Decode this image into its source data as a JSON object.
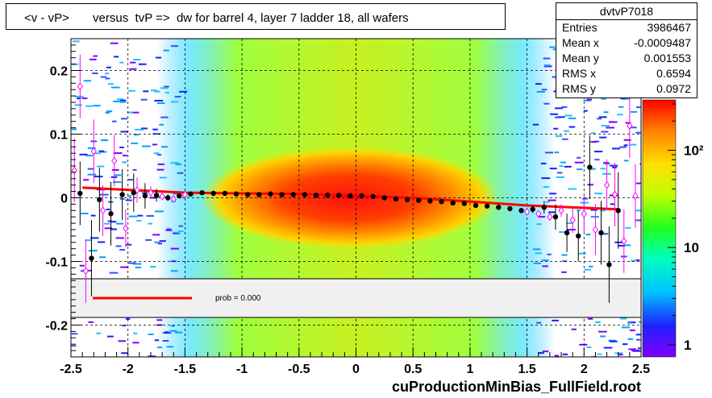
{
  "title": "<v - vP>       versus  tvP =>  dw for barrel 4, layer 7 ladder 18, all wafers",
  "stats": {
    "name": "dvtvP7018",
    "rows": [
      {
        "label": "Entries",
        "value": "3986467"
      },
      {
        "label": "Mean x",
        "value": "-0.0009487"
      },
      {
        "label": "Mean y",
        "value": "0.001553"
      },
      {
        "label": "RMS x",
        "value": "0.6594"
      },
      {
        "label": "RMS y",
        "value": "0.0972"
      }
    ]
  },
  "legend": {
    "prob_text": "prob = 0.000"
  },
  "footer": "cuProductionMinBias_FullField.root",
  "colors": {
    "fit_line": "#ff0000",
    "profile_marker": "#000000",
    "alt_marker": "#ff00ff"
  },
  "chart_data": {
    "type": "heatmap",
    "xlim": [
      -2.5,
      2.5
    ],
    "ylim": [
      -0.25,
      0.25
    ],
    "x_ticks": [
      -2.5,
      -2,
      -1.5,
      -1,
      -0.5,
      0,
      0.5,
      1,
      1.5,
      2,
      2.5
    ],
    "x_tick_labels": [
      "-2.5",
      "-2",
      "-1.5",
      "-1",
      "-0.5",
      "0",
      "0.5",
      "1",
      "1.5",
      "2",
      "2.5"
    ],
    "y_ticks": [
      -0.2,
      -0.1,
      0,
      0.1,
      0.2
    ],
    "y_tick_labels": [
      "-0.2",
      "-0.1",
      "0",
      "0.1",
      "0.2"
    ],
    "z_scale": "log",
    "z_ticks": [
      1,
      10,
      100
    ],
    "z_tick_labels": [
      "1",
      "10",
      "10²"
    ],
    "grid": true,
    "fit_line": {
      "x": [
        -2.4,
        -1.5,
        -0.5,
        0.5,
        1.5,
        2.3
      ],
      "y": [
        0.016,
        0.008,
        0.006,
        0.0,
        -0.012,
        -0.018
      ]
    },
    "profile": {
      "x": [
        -2.42,
        -2.32,
        -2.25,
        -2.15,
        -2.05,
        -1.95,
        -1.85,
        -1.75,
        -1.65,
        -1.55,
        -1.45,
        -1.35,
        -1.25,
        -1.15,
        -1.05,
        -0.95,
        -0.85,
        -0.75,
        -0.65,
        -0.55,
        -0.45,
        -0.35,
        -0.25,
        -0.15,
        -0.05,
        0.05,
        0.15,
        0.25,
        0.35,
        0.45,
        0.55,
        0.65,
        0.75,
        0.85,
        0.95,
        1.05,
        1.15,
        1.25,
        1.35,
        1.45,
        1.55,
        1.65,
        1.75,
        1.85,
        1.95,
        2.05,
        2.15,
        2.22,
        2.3
      ],
      "y": [
        0.007,
        -0.095,
        -0.003,
        -0.025,
        0.005,
        0.008,
        0.003,
        0.004,
        0.0,
        0.003,
        0.006,
        0.008,
        0.007,
        0.007,
        0.006,
        0.005,
        0.005,
        0.006,
        0.005,
        0.005,
        0.005,
        0.004,
        0.004,
        0.004,
        0.003,
        0.003,
        0.002,
        0.0,
        -0.002,
        -0.003,
        -0.004,
        -0.005,
        -0.006,
        -0.008,
        -0.009,
        -0.012,
        -0.013,
        -0.015,
        -0.017,
        -0.02,
        -0.018,
        -0.015,
        -0.03,
        -0.055,
        -0.06,
        0.048,
        -0.055,
        -0.105,
        -0.02
      ],
      "yerr": [
        0.05,
        0.06,
        0.05,
        0.05,
        0.04,
        0.03,
        0.02,
        0.01,
        0.005,
        0.004,
        0.002,
        0.001,
        0.001,
        0.001,
        0.001,
        0.001,
        0.001,
        0.001,
        0.001,
        0.001,
        0.001,
        0.001,
        0.001,
        0.001,
        0.001,
        0.001,
        0.001,
        0.001,
        0.001,
        0.001,
        0.001,
        0.001,
        0.001,
        0.001,
        0.001,
        0.001,
        0.001,
        0.002,
        0.003,
        0.004,
        0.006,
        0.01,
        0.02,
        0.03,
        0.04,
        0.05,
        0.05,
        0.06,
        0.06
      ]
    },
    "alt_profile": {
      "x": [
        -2.47,
        -2.42,
        -2.37,
        -2.3,
        -2.22,
        -2.12,
        -2.02,
        -1.92,
        -1.8,
        -1.7,
        -1.6,
        -1.5,
        1.5,
        1.6,
        1.7,
        1.8,
        1.9,
        2.0,
        2.1,
        2.2,
        2.27,
        2.35,
        2.4,
        2.45
      ],
      "y": [
        0.043,
        0.175,
        -0.115,
        0.073,
        -0.02,
        0.058,
        -0.048,
        0.012,
        0.008,
        0.002,
        -0.002,
        0.005,
        -0.022,
        -0.025,
        -0.03,
        -0.02,
        -0.035,
        -0.025,
        -0.05,
        0.02,
        0.005,
        -0.068,
        0.113,
        0.003
      ],
      "yerr": [
        0.05,
        0.05,
        0.05,
        0.05,
        0.04,
        0.04,
        0.03,
        0.02,
        0.01,
        0.005,
        0.004,
        0.003,
        0.003,
        0.004,
        0.006,
        0.01,
        0.02,
        0.03,
        0.04,
        0.04,
        0.05,
        0.05,
        0.05,
        0.05
      ]
    }
  }
}
